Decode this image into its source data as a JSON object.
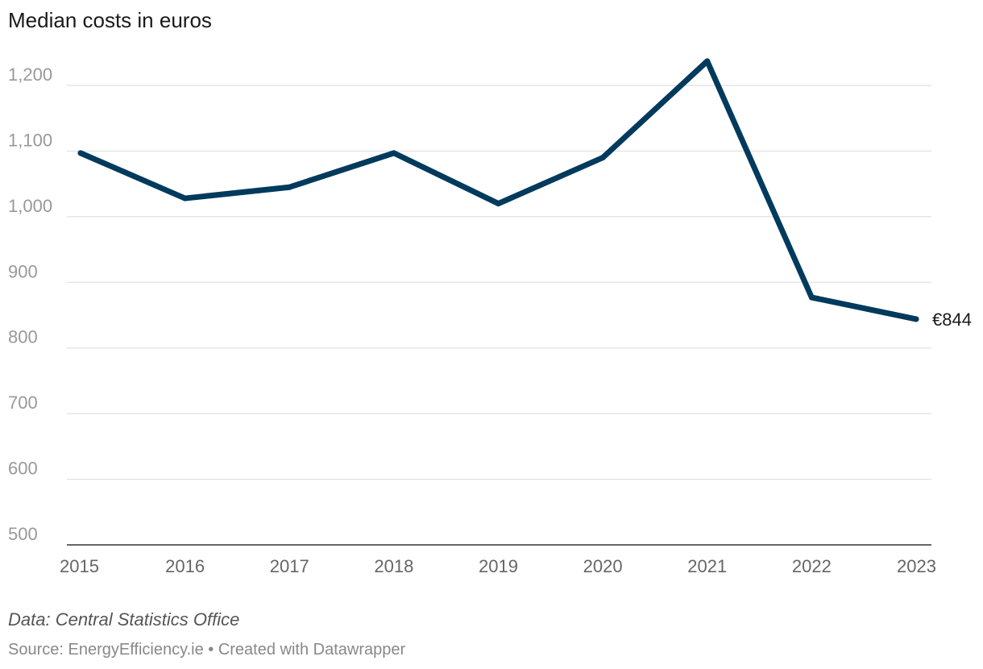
{
  "chart_data": {
    "type": "line",
    "title": "Median costs in euros",
    "xlabel": "",
    "ylabel": "",
    "categories": [
      "2015",
      "2016",
      "2017",
      "2018",
      "2019",
      "2020",
      "2021",
      "2022",
      "2023"
    ],
    "series": [
      {
        "name": "Median costs",
        "values": [
          1097,
          1028,
          1045,
          1097,
          1020,
          1090,
          1237,
          877,
          844
        ],
        "color": "#003a5c"
      }
    ],
    "ylim": [
      500,
      1200
    ],
    "yticks": [
      500,
      600,
      700,
      800,
      900,
      1000,
      1100,
      1200
    ],
    "ytick_labels": [
      "500",
      "600",
      "700",
      "800",
      "900",
      "1,000",
      "1,100",
      "1,200"
    ],
    "grid": true,
    "end_label": "€844"
  },
  "footer": {
    "note": "Data: Central Statistics Office",
    "source": "Source: EnergyEfficiency.ie • Created with Datawrapper"
  },
  "colors": {
    "line": "#003a5c",
    "grid": "#e0e0e0",
    "axis_text": "#999999",
    "x_text": "#666666"
  }
}
